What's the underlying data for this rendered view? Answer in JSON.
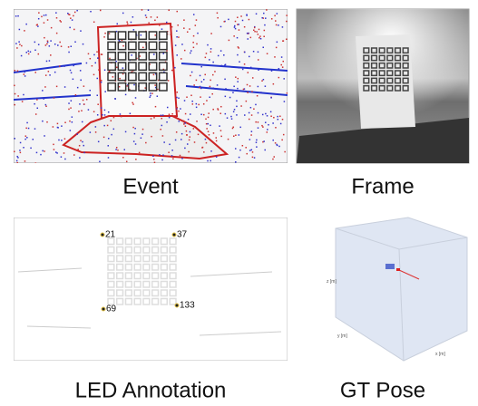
{
  "panels": [
    {
      "caption": "Event"
    },
    {
      "caption": "Frame"
    },
    {
      "caption": "LED Annotation",
      "labels": [
        21,
        37,
        69,
        133
      ]
    },
    {
      "caption": "GT Pose",
      "axes": [
        "x [m]",
        "y [m]",
        "z [m]"
      ]
    }
  ]
}
